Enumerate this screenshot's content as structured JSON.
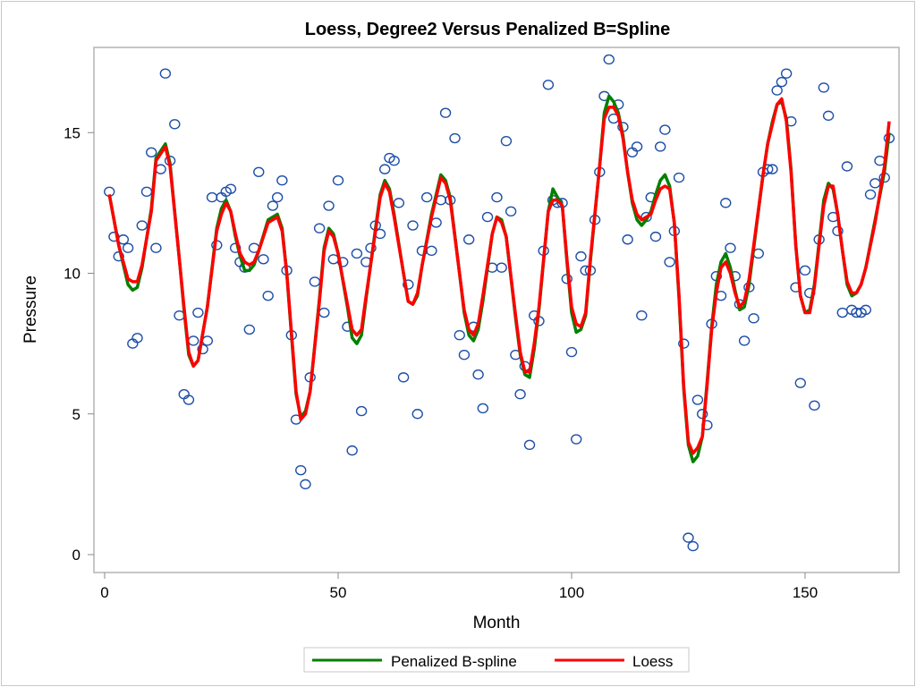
{
  "chart_data": {
    "type": "scatter",
    "title": "Loess, Degree2 Versus Penalized B=Spline",
    "xlabel": "Month",
    "ylabel": "Pressure",
    "xlim": [
      -2,
      170
    ],
    "ylim": [
      -0.6,
      18.1
    ],
    "xticks": [
      0,
      50,
      100,
      150
    ],
    "yticks": [
      0,
      5,
      10,
      15
    ],
    "grid": false,
    "legend_position": "bottom",
    "colors": {
      "points": "#1f4fa8",
      "spline": "#008000",
      "loess": "#ff0000"
    },
    "points": {
      "x": [
        1,
        2,
        3,
        4,
        5,
        6,
        7,
        8,
        9,
        10,
        11,
        12,
        13,
        14,
        15,
        16,
        17,
        18,
        19,
        20,
        21,
        22,
        23,
        24,
        25,
        26,
        27,
        28,
        29,
        30,
        31,
        32,
        33,
        34,
        35,
        36,
        37,
        38,
        39,
        40,
        41,
        42,
        43,
        44,
        45,
        46,
        47,
        48,
        49,
        50,
        51,
        52,
        53,
        54,
        55,
        56,
        57,
        58,
        59,
        60,
        61,
        62,
        63,
        64,
        65,
        66,
        67,
        68,
        69,
        70,
        71,
        72,
        73,
        74,
        75,
        76,
        77,
        78,
        79,
        80,
        81,
        82,
        83,
        84,
        85,
        86,
        87,
        88,
        89,
        90,
        91,
        92,
        93,
        94,
        95,
        96,
        97,
        98,
        99,
        100,
        101,
        102,
        103,
        104,
        105,
        106,
        107,
        108,
        109,
        110,
        111,
        112,
        113,
        114,
        115,
        116,
        117,
        118,
        119,
        120,
        121,
        122,
        123,
        124,
        125,
        126,
        127,
        128,
        129,
        130,
        131,
        132,
        133,
        134,
        135,
        136,
        137,
        138,
        139,
        140,
        141,
        142,
        143,
        144,
        145,
        146,
        147,
        148,
        149,
        150,
        151,
        152,
        153,
        154,
        155,
        156,
        157,
        158,
        159,
        160,
        161,
        162,
        163,
        164,
        165,
        166,
        167,
        168
      ],
      "y": [
        12.9,
        11.3,
        10.6,
        11.2,
        10.9,
        7.5,
        7.7,
        11.7,
        12.9,
        14.3,
        10.9,
        13.7,
        17.1,
        14.0,
        15.3,
        8.5,
        5.7,
        5.5,
        7.6,
        8.6,
        7.3,
        7.6,
        12.7,
        11.0,
        12.7,
        12.9,
        13.0,
        10.9,
        10.4,
        10.2,
        8.0,
        10.9,
        13.6,
        10.5,
        9.2,
        12.4,
        12.7,
        13.3,
        10.1,
        7.8,
        4.8,
        3.0,
        2.5,
        6.3,
        9.7,
        11.6,
        8.6,
        12.4,
        10.5,
        13.3,
        10.4,
        8.1,
        3.7,
        10.7,
        5.1,
        10.4,
        10.9,
        11.7,
        11.4,
        13.7,
        14.1,
        14.0,
        12.5,
        6.3,
        9.6,
        11.7,
        5.0,
        10.8,
        12.7,
        10.8,
        11.8,
        12.6,
        15.7,
        12.6,
        14.8,
        7.8,
        7.1,
        11.2,
        8.1,
        6.4,
        5.2,
        12.0,
        10.2,
        12.7,
        10.2,
        14.7,
        12.2,
        7.1,
        5.7,
        6.7,
        3.9,
        8.5,
        8.3,
        10.8,
        16.7,
        12.6,
        12.5,
        12.5,
        9.8,
        7.2,
        4.1,
        10.6,
        10.1,
        10.1,
        11.9,
        13.6,
        16.3,
        17.6,
        15.5,
        16.0,
        15.2,
        11.2,
        14.3,
        14.5,
        8.5,
        12.0,
        12.7,
        11.3,
        14.5,
        15.1,
        10.4,
        11.5,
        13.4,
        7.5,
        0.6,
        0.3,
        5.5,
        5.0,
        4.6,
        8.2,
        9.9,
        9.2,
        12.5,
        10.9,
        9.9,
        8.9,
        7.6,
        9.5,
        8.4,
        10.7,
        13.6,
        13.7,
        13.7,
        16.5,
        16.8,
        17.1,
        15.4,
        9.5,
        6.1,
        10.1,
        9.3,
        5.3,
        11.2,
        16.6,
        15.6,
        12.0,
        11.5,
        8.6,
        13.8,
        8.7,
        8.6,
        8.6,
        8.7,
        12.8,
        13.2,
        14.0,
        13.4,
        14.8
      ]
    },
    "series": [
      {
        "name": "Penalized B-spline",
        "type": "line",
        "x": [
          1,
          3,
          5,
          6,
          7,
          8,
          10,
          11,
          13,
          14,
          16,
          17,
          18,
          19,
          20,
          22,
          24,
          25,
          26,
          27,
          28,
          29,
          30,
          31,
          32,
          33,
          35,
          37,
          38,
          39,
          40,
          41,
          42,
          43,
          44,
          46,
          47,
          48,
          49,
          50,
          52,
          53,
          54,
          55,
          56,
          58,
          59,
          60,
          61,
          62,
          64,
          65,
          66,
          67,
          68,
          70,
          72,
          73,
          74,
          76,
          77,
          78,
          79,
          80,
          81,
          83,
          84,
          85,
          86,
          88,
          89,
          90,
          91,
          92,
          93,
          95,
          96,
          97,
          98,
          99,
          100,
          101,
          102,
          103,
          104,
          106,
          107,
          108,
          109,
          110,
          111,
          112,
          113,
          114,
          115,
          116,
          117,
          118,
          119,
          120,
          121,
          122,
          123,
          124,
          125,
          126,
          127,
          128,
          129,
          130,
          131,
          132,
          133,
          134,
          135,
          136,
          137,
          138,
          139,
          141,
          142,
          143,
          144,
          145,
          146,
          147,
          148,
          149,
          150,
          151,
          152,
          153,
          154,
          155,
          156,
          157,
          158,
          159,
          160,
          161,
          162,
          163,
          165,
          167,
          168
        ],
        "y": [
          12.8,
          11.0,
          9.6,
          9.4,
          9.5,
          10.2,
          12.3,
          14.1,
          14.6,
          13.9,
          10.5,
          8.7,
          7.1,
          6.7,
          6.9,
          8.8,
          11.6,
          12.3,
          12.6,
          12.2,
          11.3,
          10.6,
          10.1,
          10.1,
          10.3,
          10.8,
          11.9,
          12.1,
          11.6,
          10.0,
          7.8,
          5.7,
          4.9,
          5.1,
          5.8,
          9.1,
          10.9,
          11.6,
          11.4,
          10.7,
          8.8,
          7.7,
          7.5,
          7.8,
          9.1,
          11.6,
          12.8,
          13.3,
          13.0,
          12.1,
          10.0,
          9.0,
          8.9,
          9.2,
          10.3,
          12.1,
          13.5,
          13.3,
          12.7,
          10.0,
          8.6,
          7.8,
          7.6,
          8.0,
          9.0,
          11.4,
          12.0,
          11.9,
          11.3,
          8.4,
          7.1,
          6.4,
          6.3,
          7.3,
          8.7,
          12.2,
          13.0,
          12.7,
          12.4,
          10.4,
          8.6,
          7.9,
          8.0,
          8.5,
          10.4,
          13.8,
          15.7,
          16.3,
          16.1,
          15.7,
          14.9,
          13.6,
          12.5,
          11.9,
          11.7,
          11.9,
          12.2,
          12.8,
          13.3,
          13.5,
          13.1,
          11.8,
          9.1,
          5.9,
          3.9,
          3.3,
          3.5,
          4.2,
          6.1,
          8.1,
          9.6,
          10.4,
          10.7,
          10.2,
          9.4,
          8.7,
          8.8,
          9.6,
          10.9,
          13.5,
          14.6,
          15.4,
          16.0,
          16.1,
          15.5,
          13.7,
          11.0,
          9.2,
          8.6,
          8.7,
          9.6,
          11.1,
          12.6,
          13.2,
          13.0,
          12.1,
          10.8,
          9.6,
          9.2,
          9.3,
          9.6,
          10.2,
          11.9,
          13.6,
          15.0
        ]
      },
      {
        "name": "Loess",
        "type": "line",
        "x": [
          1,
          3,
          5,
          6,
          7,
          8,
          10,
          11,
          13,
          14,
          16,
          17,
          18,
          19,
          20,
          22,
          24,
          25,
          26,
          27,
          28,
          29,
          30,
          31,
          32,
          33,
          35,
          37,
          38,
          39,
          40,
          41,
          42,
          43,
          44,
          46,
          47,
          48,
          49,
          50,
          52,
          53,
          54,
          55,
          56,
          58,
          59,
          60,
          61,
          62,
          64,
          65,
          66,
          67,
          68,
          70,
          72,
          73,
          74,
          76,
          77,
          78,
          79,
          80,
          81,
          83,
          84,
          85,
          86,
          88,
          89,
          90,
          91,
          92,
          93,
          95,
          96,
          97,
          98,
          99,
          100,
          101,
          102,
          103,
          104,
          106,
          107,
          108,
          109,
          110,
          111,
          112,
          113,
          114,
          115,
          116,
          117,
          118,
          119,
          120,
          121,
          122,
          123,
          124,
          125,
          126,
          127,
          128,
          129,
          130,
          131,
          132,
          133,
          134,
          135,
          136,
          137,
          138,
          139,
          141,
          142,
          143,
          144,
          145,
          146,
          147,
          148,
          149,
          150,
          151,
          152,
          153,
          154,
          155,
          156,
          157,
          158,
          159,
          160,
          161,
          162,
          163,
          165,
          167,
          168
        ],
        "y": [
          12.8,
          11.0,
          9.8,
          9.7,
          9.7,
          10.3,
          12.2,
          14.0,
          14.5,
          13.8,
          10.5,
          8.8,
          7.2,
          6.7,
          6.9,
          8.8,
          11.5,
          12.1,
          12.5,
          12.2,
          11.4,
          10.7,
          10.4,
          10.3,
          10.4,
          10.8,
          11.8,
          12.0,
          11.5,
          10.0,
          7.9,
          5.8,
          4.8,
          5.0,
          5.8,
          9.0,
          10.8,
          11.5,
          11.3,
          10.7,
          8.9,
          8.0,
          7.8,
          8.0,
          9.2,
          11.5,
          12.7,
          13.2,
          12.9,
          12.0,
          10.0,
          9.0,
          8.9,
          9.3,
          10.3,
          12.0,
          13.4,
          13.2,
          12.6,
          10.0,
          8.7,
          8.0,
          7.8,
          8.2,
          9.2,
          11.4,
          12.0,
          11.8,
          11.3,
          8.5,
          7.2,
          6.5,
          6.5,
          7.5,
          8.8,
          12.2,
          12.6,
          12.6,
          12.4,
          10.5,
          8.8,
          8.2,
          8.1,
          8.6,
          10.5,
          13.8,
          15.5,
          15.9,
          15.9,
          15.6,
          14.8,
          13.6,
          12.6,
          12.1,
          11.9,
          12.0,
          12.1,
          12.6,
          13.0,
          13.1,
          13.0,
          11.8,
          9.2,
          6.0,
          4.0,
          3.6,
          3.8,
          4.2,
          6.0,
          8.0,
          9.3,
          10.2,
          10.4,
          10.0,
          9.3,
          8.8,
          9.0,
          9.8,
          11.0,
          13.5,
          14.6,
          15.3,
          16.0,
          16.2,
          15.4,
          13.6,
          11.0,
          9.2,
          8.6,
          8.6,
          9.5,
          11.0,
          12.4,
          13.1,
          13.1,
          12.1,
          10.8,
          9.7,
          9.3,
          9.3,
          9.6,
          10.2,
          11.8,
          13.8,
          15.4
        ]
      }
    ]
  }
}
